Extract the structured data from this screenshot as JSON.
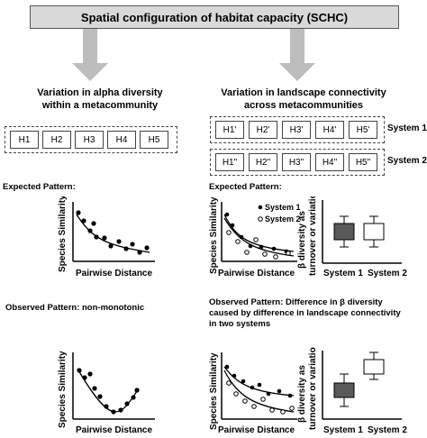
{
  "title": "Spatial configuration of habitat capacity (SCHC)",
  "left_heading": [
    "Variation in alpha diversity",
    "within a metacommunity"
  ],
  "right_heading": [
    "Variation in landscape connectivity",
    "across metacommunities"
  ],
  "left_habitats": [
    "H1",
    "H2",
    "H3",
    "H4",
    "H5"
  ],
  "system1_habitats": [
    "H1'",
    "H2'",
    "H3'",
    "H4'",
    "H5'"
  ],
  "system2_habitats": [
    "H1\"",
    "H2\"",
    "H3\"",
    "H4\"",
    "H5\""
  ],
  "system1_label": "System 1",
  "system2_label": "System 2",
  "expected_left": "Expected Pattern:",
  "expected_right": "Expected Pattern:",
  "observed_left": "Observed Pattern: non-monotonic",
  "observed_right": [
    "Observed Pattern: Difference in β diversity",
    "caused by difference in landscape connectivity",
    "in two systems"
  ],
  "y_label_similarity": "Species Similarity",
  "x_label_distance": "Pairwise Distance",
  "y_label_beta": [
    "β diversity as",
    "turnover or variation"
  ],
  "legend": {
    "system1": "System 1",
    "system2": "System 2"
  },
  "box_x_labels": [
    "System 1",
    "System 2"
  ],
  "colors": {
    "arrow": "#bdbdbd",
    "title_bg": "#d9d9d9",
    "box_dark": "#595959",
    "box_light": "#ffffff"
  }
}
